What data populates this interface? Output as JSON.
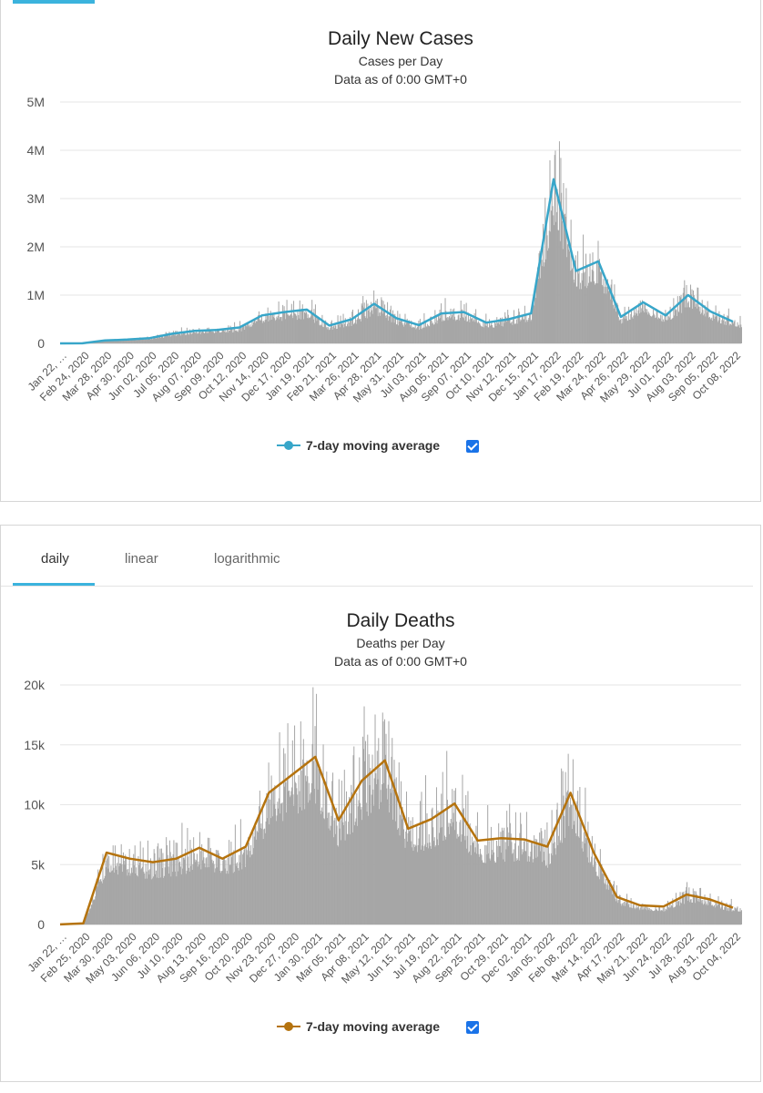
{
  "colors": {
    "bars": "#a6a6a6",
    "cases_line": "#38a6c9",
    "deaths_line": "#b5730e",
    "accent": "#3bb3dd",
    "grid": "#e6e6e6"
  },
  "cases_panel": {
    "legend_label": "7-day moving average",
    "checkbox_checked": true
  },
  "deaths_panel": {
    "tabs": [
      "daily",
      "linear",
      "logarithmic"
    ],
    "active_tab": "daily",
    "legend_label": "7-day moving average",
    "checkbox_checked": true
  },
  "chart_data": [
    {
      "type": "bar",
      "title": "Daily New Cases",
      "subtitle": [
        "Cases per Day",
        "Data as of 0:00 GMT+0"
      ],
      "xlabel": "",
      "ylabel": "",
      "ylim": [
        0,
        5000000
      ],
      "ytick_labels": [
        "0",
        "1M",
        "2M",
        "3M",
        "4M",
        "5M"
      ],
      "ytick_values": [
        0,
        1000000,
        2000000,
        3000000,
        4000000,
        5000000
      ],
      "x_tick_labels": [
        "Jan 22, …",
        "Feb 24, 2020",
        "Mar 28, 2020",
        "Apr 30, 2020",
        "Jun 02, 2020",
        "Jul 05, 2020",
        "Aug 07, 2020",
        "Sep 09, 2020",
        "Oct 12, 2020",
        "Nov 14, 2020",
        "Dec 17, 2020",
        "Jan 19, 2021",
        "Feb 21, 2021",
        "Mar 26, 2021",
        "Apr 28, 2021",
        "May 31, 2021",
        "Jul 03, 2021",
        "Aug 05, 2021",
        "Sep 07, 2021",
        "Oct 10, 2021",
        "Nov 12, 2021",
        "Dec 15, 2021",
        "Jan 17, 2022",
        "Feb 19, 2022",
        "Mar 24, 2022",
        "Apr 26, 2022",
        "May 29, 2022",
        "Jul 01, 2022",
        "Aug 03, 2022",
        "Sep 05, 2022",
        "Oct 08, 2022"
      ],
      "grid": true,
      "legend": "bottom-center",
      "series": [
        {
          "name": "7-day moving average",
          "type": "line",
          "x": [
            "2020-01-22",
            "2020-02-24",
            "2020-03-28",
            "2020-04-30",
            "2020-06-02",
            "2020-07-05",
            "2020-08-07",
            "2020-09-09",
            "2020-10-12",
            "2020-11-14",
            "2020-12-17",
            "2021-01-19",
            "2021-02-21",
            "2021-03-26",
            "2021-04-28",
            "2021-05-31",
            "2021-07-03",
            "2021-08-05",
            "2021-09-07",
            "2021-10-10",
            "2021-11-12",
            "2021-12-15",
            "2022-01-17",
            "2022-02-19",
            "2022-03-24",
            "2022-04-26",
            "2022-05-29",
            "2022-07-01",
            "2022-08-03",
            "2022-09-05",
            "2022-10-08"
          ],
          "values": [
            500,
            2000,
            60000,
            80000,
            110000,
            200000,
            260000,
            280000,
            330000,
            580000,
            650000,
            700000,
            370000,
            500000,
            820000,
            520000,
            380000,
            620000,
            650000,
            430000,
            500000,
            620000,
            3400000,
            1500000,
            1700000,
            550000,
            850000,
            580000,
            1000000,
            660000,
            450000
          ]
        }
      ]
    },
    {
      "type": "bar",
      "title": "Daily Deaths",
      "subtitle": [
        "Deaths per Day",
        "Data as of 0:00 GMT+0"
      ],
      "xlabel": "",
      "ylabel": "",
      "ylim": [
        0,
        20000
      ],
      "ytick_labels": [
        "0",
        "5k",
        "10k",
        "15k",
        "20k"
      ],
      "ytick_values": [
        0,
        5000,
        10000,
        15000,
        20000
      ],
      "x_tick_labels": [
        "Jan 22, …",
        "Feb 25, 2020",
        "Mar 30, 2020",
        "May 03, 2020",
        "Jun 06, 2020",
        "Jul 10, 2020",
        "Aug 13, 2020",
        "Sep 16, 2020",
        "Oct 20, 2020",
        "Nov 23, 2020",
        "Dec 27, 2020",
        "Jan 30, 2021",
        "Mar 05, 2021",
        "Apr 08, 2021",
        "May 12, 2021",
        "Jun 15, 2021",
        "Jul 19, 2021",
        "Aug 22, 2021",
        "Sep 25, 2021",
        "Oct 29, 2021",
        "Dec 02, 2021",
        "Jan 05, 2022",
        "Feb 08, 2022",
        "Mar 14, 2022",
        "Apr 17, 2022",
        "May 21, 2022",
        "Jun 24, 2022",
        "Jul 28, 2022",
        "Aug 31, 2022",
        "Oct 04, 2022"
      ],
      "grid": true,
      "legend": "bottom-center",
      "series": [
        {
          "name": "7-day moving average",
          "type": "line",
          "x": [
            "2020-01-22",
            "2020-02-25",
            "2020-03-30",
            "2020-05-03",
            "2020-06-06",
            "2020-07-10",
            "2020-08-13",
            "2020-09-16",
            "2020-10-20",
            "2020-11-23",
            "2020-12-27",
            "2021-01-30",
            "2021-03-05",
            "2021-04-08",
            "2021-05-12",
            "2021-06-15",
            "2021-07-19",
            "2021-08-22",
            "2021-09-25",
            "2021-10-29",
            "2021-12-02",
            "2022-01-05",
            "2022-02-08",
            "2022-03-14",
            "2022-04-17",
            "2022-05-21",
            "2022-06-24",
            "2022-07-28",
            "2022-08-31",
            "2022-10-04"
          ],
          "values": [
            10,
            100,
            6000,
            5500,
            5200,
            5500,
            6400,
            5500,
            6500,
            11000,
            12500,
            14000,
            8700,
            12000,
            13700,
            8000,
            8800,
            10100,
            7000,
            7200,
            7100,
            6500,
            11000,
            6000,
            2300,
            1600,
            1500,
            2500,
            2100,
            1400
          ]
        }
      ]
    }
  ]
}
